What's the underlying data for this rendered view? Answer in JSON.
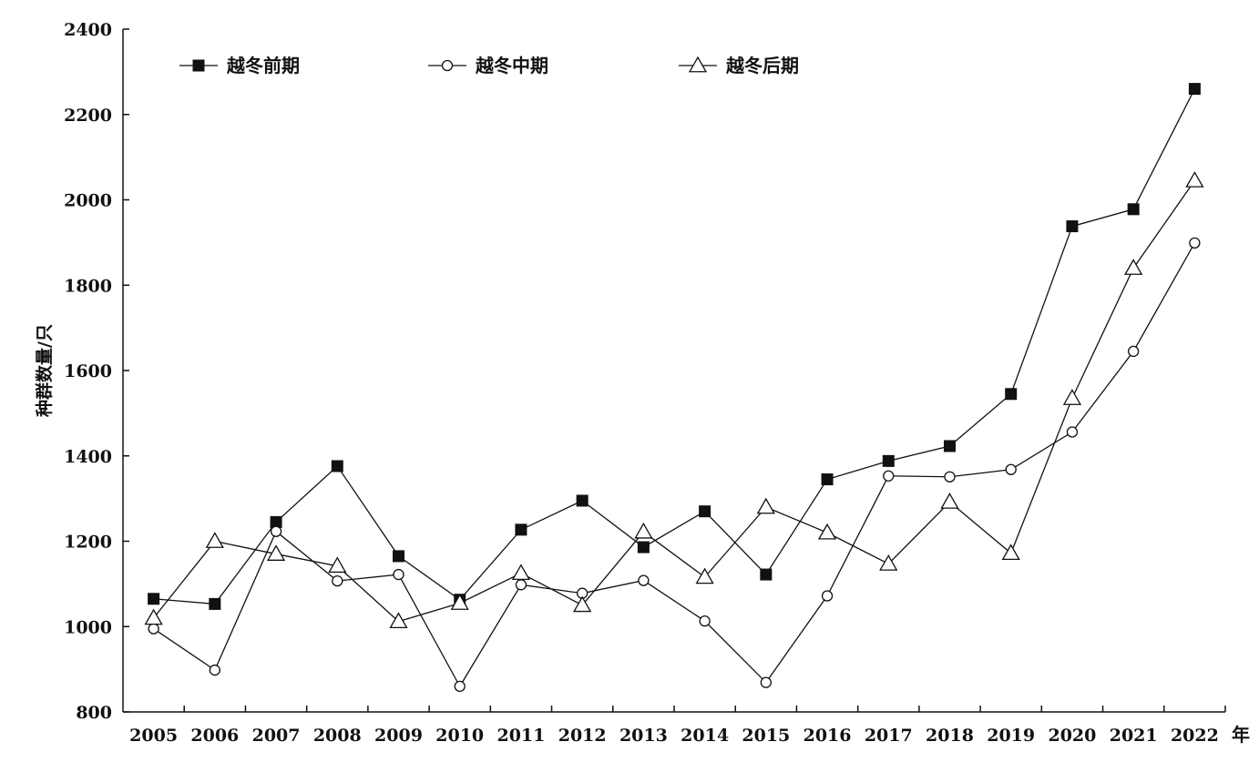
{
  "chart_data": {
    "type": "line",
    "title": "",
    "xlabel": "年",
    "ylabel": "种群数量/只",
    "ylim": [
      800,
      2400
    ],
    "yticks": [
      "800",
      "1000",
      "1200",
      "1400",
      "1600",
      "1800",
      "2000",
      "2200",
      "2400"
    ],
    "categories": [
      "2005",
      "2006",
      "2007",
      "2008",
      "2009",
      "2010",
      "2011",
      "2012",
      "2013",
      "2014",
      "2015",
      "2016",
      "2017",
      "2018",
      "2019",
      "2020",
      "2021",
      "2022"
    ],
    "legend_position": "top-left",
    "grid": false,
    "series": [
      {
        "name": "越冬前期",
        "marker": "filled-square",
        "values": [
          1065,
          1053,
          1245,
          1376,
          1165,
          1063,
          1227,
          1295,
          1186,
          1270,
          1122,
          1345,
          1388,
          1423,
          1545,
          1938,
          1978,
          2260
        ]
      },
      {
        "name": "越冬中期",
        "marker": "open-circle",
        "values": [
          995,
          898,
          1223,
          1107,
          1122,
          860,
          1098,
          1078,
          1108,
          1013,
          869,
          1072,
          1353,
          1351,
          1368,
          1456,
          1645,
          1899
        ]
      },
      {
        "name": "越冬后期",
        "marker": "open-triangle",
        "values": [
          1020,
          1200,
          1170,
          1142,
          1012,
          1055,
          1125,
          1050,
          1222,
          1116,
          1280,
          1220,
          1147,
          1292,
          1172,
          1535,
          1840,
          2045
        ]
      }
    ]
  }
}
